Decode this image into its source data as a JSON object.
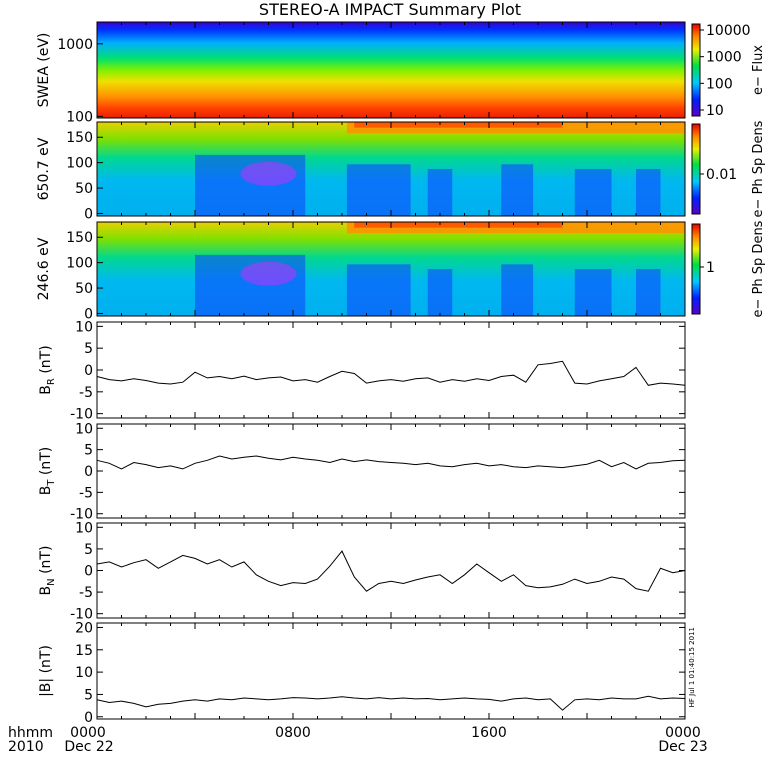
{
  "chart_data": [
    {
      "type": "heatmap",
      "title": "STEREO-A IMPACT Summary Plot",
      "ylabel": "SWEA (eV)",
      "yscale": "log",
      "ylim": [
        95,
        2000
      ],
      "yticks": [
        "1000",
        "100"
      ],
      "colorbar": {
        "label": "e− Flux",
        "scale": "log",
        "ticks": [
          "10000",
          "1000",
          "100",
          "10"
        ],
        "range": [
          5,
          10000
        ]
      }
    },
    {
      "type": "heatmap",
      "ylabel": "650.7 eV",
      "ylim": [
        -5,
        180
      ],
      "yticks": [
        "150",
        "100",
        "50",
        "0"
      ],
      "colorbar": {
        "label": "e− Ph Sp Dens",
        "scale": "log",
        "ticks": [
          "0.01"
        ]
      }
    },
    {
      "type": "heatmap",
      "ylabel": "246.6 eV",
      "ylim": [
        -5,
        180
      ],
      "yticks": [
        "150",
        "100",
        "50",
        "0"
      ],
      "colorbar": {
        "label": "e− Ph Sp Dens",
        "scale": "log",
        "ticks": [
          "1"
        ]
      }
    },
    {
      "type": "line",
      "ylabel_main": "B",
      "ylabel_sub": "R",
      "ylabel_unit": " (nT)",
      "ylim": [
        -11,
        11
      ],
      "yticks": [
        "10",
        "5",
        "0",
        "-5",
        "-10"
      ],
      "x": [
        0,
        0.5,
        1,
        1.5,
        2,
        2.5,
        3,
        3.5,
        4,
        4.5,
        5,
        5.5,
        6,
        6.5,
        7,
        7.5,
        8,
        8.5,
        9,
        9.5,
        10,
        10.5,
        11,
        11.5,
        12,
        12.5,
        13,
        13.5,
        14,
        14.5,
        15,
        15.5,
        16,
        16.5,
        17,
        17.5,
        18,
        18.5,
        19,
        19.5,
        20,
        20.5,
        21,
        21.5,
        22,
        22.5,
        23,
        23.5,
        24
      ],
      "values": [
        -1.5,
        -2.2,
        -2.5,
        -2.0,
        -2.4,
        -3.0,
        -3.2,
        -2.8,
        -0.5,
        -1.8,
        -1.5,
        -2.0,
        -1.4,
        -2.2,
        -1.8,
        -1.6,
        -2.5,
        -2.2,
        -2.8,
        -1.5,
        -0.3,
        -0.8,
        -3.0,
        -2.5,
        -2.2,
        -2.6,
        -2.0,
        -1.8,
        -2.8,
        -2.2,
        -2.6,
        -2.0,
        -2.4,
        -1.5,
        -1.2,
        -2.8,
        1.2,
        1.5,
        2.0,
        -3.0,
        -3.2,
        -2.5,
        -2.0,
        -1.5,
        0.6,
        -3.5,
        -3.0,
        -3.2,
        -3.5
      ]
    },
    {
      "type": "line",
      "ylabel_main": "B",
      "ylabel_sub": "T",
      "ylabel_unit": " (nT)",
      "ylim": [
        -11,
        11
      ],
      "yticks": [
        "10",
        "5",
        "0",
        "-5",
        "-10"
      ],
      "x": [
        0,
        0.5,
        1,
        1.5,
        2,
        2.5,
        3,
        3.5,
        4,
        4.5,
        5,
        5.5,
        6,
        6.5,
        7,
        7.5,
        8,
        8.5,
        9,
        9.5,
        10,
        10.5,
        11,
        11.5,
        12,
        12.5,
        13,
        13.5,
        14,
        14.5,
        15,
        15.5,
        16,
        16.5,
        17,
        17.5,
        18,
        18.5,
        19,
        19.5,
        20,
        20.5,
        21,
        21.5,
        22,
        22.5,
        23,
        23.5,
        24
      ],
      "values": [
        2.5,
        1.8,
        0.5,
        2.0,
        1.5,
        0.8,
        1.2,
        0.5,
        1.8,
        2.5,
        3.5,
        2.8,
        3.2,
        3.5,
        3.0,
        2.6,
        3.2,
        2.8,
        2.5,
        2.0,
        2.8,
        2.2,
        2.6,
        2.2,
        2.0,
        1.8,
        1.5,
        1.8,
        1.2,
        1.0,
        1.5,
        1.8,
        1.2,
        1.5,
        1.0,
        0.8,
        1.2,
        1.0,
        0.8,
        1.2,
        1.6,
        2.5,
        1.0,
        2.0,
        0.5,
        1.8,
        2.0,
        2.4,
        2.5
      ]
    },
    {
      "type": "line",
      "ylabel_main": "B",
      "ylabel_sub": "N",
      "ylabel_unit": " (nT)",
      "ylim": [
        -11,
        11
      ],
      "yticks": [
        "10",
        "5",
        "0",
        "-5",
        "-10"
      ],
      "x": [
        0,
        0.5,
        1,
        1.5,
        2,
        2.5,
        3,
        3.5,
        4,
        4.5,
        5,
        5.5,
        6,
        6.5,
        7,
        7.5,
        8,
        8.5,
        9,
        9.5,
        10,
        10.5,
        11,
        11.5,
        12,
        12.5,
        13,
        13.5,
        14,
        14.5,
        15,
        15.5,
        16,
        16.5,
        17,
        17.5,
        18,
        18.5,
        19,
        19.5,
        20,
        20.5,
        21,
        21.5,
        22,
        22.5,
        23,
        23.5,
        24
      ],
      "values": [
        1.5,
        2.0,
        0.8,
        1.8,
        2.5,
        0.5,
        2.0,
        3.5,
        2.8,
        1.5,
        2.5,
        0.8,
        2.0,
        -1.0,
        -2.5,
        -3.5,
        -2.8,
        -3.0,
        -2.0,
        1.0,
        4.5,
        -1.5,
        -4.8,
        -3.0,
        -2.5,
        -3.0,
        -2.2,
        -1.5,
        -1.0,
        -3.0,
        -1.0,
        1.5,
        -0.5,
        -2.5,
        -1.0,
        -3.5,
        -4.0,
        -3.8,
        -3.2,
        -2.0,
        -3.0,
        -2.5,
        -1.5,
        -2.0,
        -4.2,
        -4.8,
        0.5,
        -0.5,
        0.0
      ]
    },
    {
      "type": "line",
      "ylabel": "|B| (nT)",
      "ylim": [
        -0.5,
        21
      ],
      "yticks": [
        "20",
        "15",
        "10",
        "5",
        "0"
      ],
      "side_stamp": "HF Jul  1 01:40:15 2011",
      "x": [
        0,
        0.5,
        1,
        1.5,
        2,
        2.5,
        3,
        3.5,
        4,
        4.5,
        5,
        5.5,
        6,
        6.5,
        7,
        7.5,
        8,
        8.5,
        9,
        9.5,
        10,
        10.5,
        11,
        11.5,
        12,
        12.5,
        13,
        13.5,
        14,
        14.5,
        15,
        15.5,
        16,
        16.5,
        17,
        17.5,
        18,
        18.5,
        19,
        19.5,
        20,
        20.5,
        21,
        21.5,
        22,
        22.5,
        23,
        23.5,
        24
      ],
      "values": [
        3.8,
        3.2,
        3.5,
        3.0,
        2.2,
        2.8,
        3.0,
        3.5,
        3.8,
        3.5,
        4.0,
        3.8,
        4.2,
        4.0,
        3.8,
        4.0,
        4.3,
        4.2,
        4.0,
        4.2,
        4.5,
        4.2,
        4.0,
        4.3,
        4.0,
        4.2,
        4.0,
        4.1,
        3.8,
        4.0,
        4.2,
        4.0,
        3.9,
        3.5,
        4.0,
        4.2,
        3.8,
        4.0,
        1.5,
        3.8,
        4.0,
        3.8,
        4.2,
        4.0,
        4.0,
        4.6,
        4.0,
        4.2,
        4.1
      ]
    }
  ],
  "time_axis": {
    "label_line1": "hhmm",
    "label_line2": "2010",
    "start_label": "0000",
    "start_date": "Dec 22",
    "mid1_label": "0800",
    "mid2_label": "1600",
    "end_label": "0000",
    "end_date": "Dec 23"
  },
  "colors": {
    "background": "#ffffff",
    "axes": "#000000",
    "trace": "#000000"
  }
}
